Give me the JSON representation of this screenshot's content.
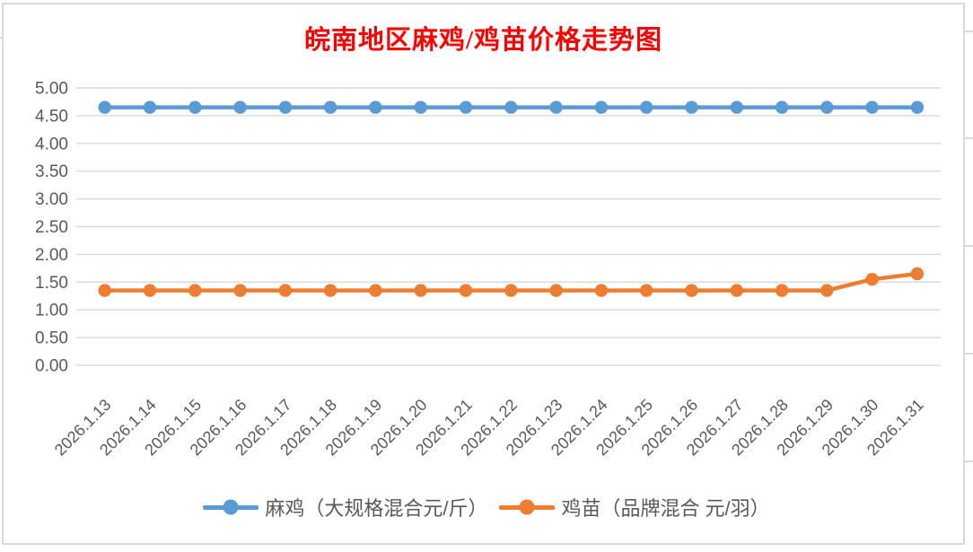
{
  "window": {
    "background": "#ffffff",
    "chart_border_color": "#d9d9d9"
  },
  "chart_data": {
    "type": "line",
    "title": "皖南地区麻鸡/鸡苗价格走势图",
    "title_color": "#ff0000",
    "categories": [
      "2026.1.13",
      "2026.1.14",
      "2026.1.15",
      "2026.1.16",
      "2026.1.17",
      "2026.1.18",
      "2026.1.19",
      "2026.1.20",
      "2026.1.21",
      "2026.1.22",
      "2026.1.23",
      "2026.1.24",
      "2026.1.25",
      "2026.1.26",
      "2026.1.27",
      "2026.1.28",
      "2026.1.29",
      "2026.1.30",
      "2026.1.31"
    ],
    "series": [
      {
        "name": "麻鸡（大规格混合元/斤）",
        "color": "#5b9bd5",
        "values": [
          4.65,
          4.65,
          4.65,
          4.65,
          4.65,
          4.65,
          4.65,
          4.65,
          4.65,
          4.65,
          4.65,
          4.65,
          4.65,
          4.65,
          4.65,
          4.65,
          4.65,
          4.65,
          4.65
        ]
      },
      {
        "name": "鸡苗（品牌混合 元/羽）",
        "color": "#ed7d31",
        "values": [
          1.35,
          1.35,
          1.35,
          1.35,
          1.35,
          1.35,
          1.35,
          1.35,
          1.35,
          1.35,
          1.35,
          1.35,
          1.35,
          1.35,
          1.35,
          1.35,
          1.35,
          1.55,
          1.65
        ]
      }
    ],
    "xlabel": "",
    "ylabel": "",
    "ylim": [
      0,
      5
    ],
    "ytick_step": 0.5,
    "ytick_decimals": 2,
    "ytick_labels": [
      "0.00",
      "0.50",
      "1.00",
      "1.50",
      "2.00",
      "2.50",
      "3.00",
      "3.50",
      "4.00",
      "4.50",
      "5.00"
    ],
    "grid": true,
    "gridline_color": "#d9d9d9",
    "axis_label_color": "#595959",
    "xtick_rotation": -45,
    "legend_position": "bottom",
    "legend_text_color": "#595959"
  }
}
